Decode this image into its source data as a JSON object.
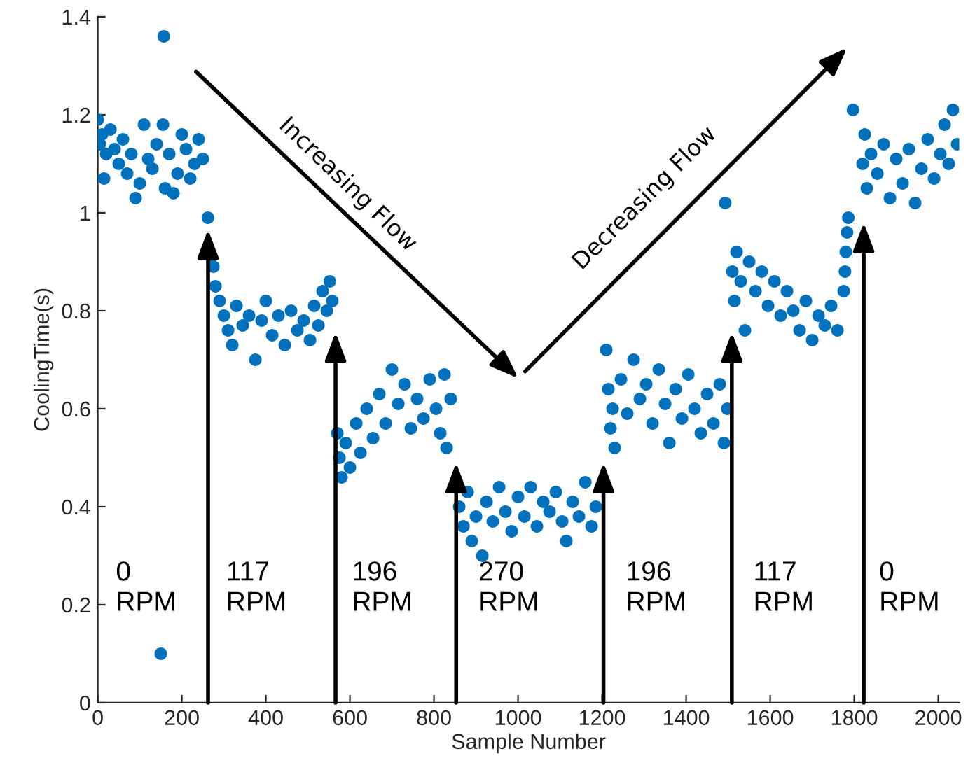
{
  "chart_data": {
    "type": "scatter",
    "xlabel": "Sample Number",
    "ylabel": "CoolingTime(s)",
    "xlim": [
      0,
      2050
    ],
    "ylim": [
      0,
      1.4
    ],
    "xticks": [
      0,
      200,
      400,
      600,
      800,
      1000,
      1200,
      1400,
      1600,
      1800,
      2000
    ],
    "yticks": [
      0,
      0.2,
      0.4,
      0.6,
      0.8,
      1,
      1.2,
      1.4
    ],
    "grid": false,
    "marker": "circle",
    "series": [
      {
        "color": "#0072bd",
        "x": [
          0,
          5,
          10,
          15,
          20,
          30,
          40,
          50,
          60,
          70,
          80,
          90,
          100,
          110,
          120,
          130,
          140,
          157,
          150,
          155,
          160,
          170,
          180,
          190,
          200,
          210,
          220,
          230,
          240,
          250,
          262,
          270,
          275,
          280,
          290,
          300,
          310,
          320,
          330,
          345,
          360,
          375,
          390,
          400,
          415,
          430,
          445,
          460,
          475,
          490,
          505,
          515,
          525,
          535,
          545,
          552,
          558,
          570,
          575,
          580,
          590,
          600,
          615,
          625,
          640,
          655,
          670,
          685,
          700,
          715,
          730,
          745,
          760,
          775,
          790,
          805,
          815,
          825,
          830,
          840,
          860,
          870,
          880,
          890,
          900,
          915,
          925,
          940,
          955,
          970,
          985,
          1000,
          1015,
          1030,
          1045,
          1060,
          1075,
          1090,
          1105,
          1115,
          1130,
          1145,
          1160,
          1175,
          1185,
          1210,
          1215,
          1220,
          1225,
          1230,
          1245,
          1260,
          1275,
          1290,
          1305,
          1320,
          1335,
          1350,
          1360,
          1375,
          1390,
          1405,
          1420,
          1435,
          1450,
          1465,
          1480,
          1490,
          1498,
          1493,
          1510,
          1515,
          1520,
          1530,
          1540,
          1550,
          1565,
          1580,
          1595,
          1610,
          1625,
          1640,
          1655,
          1670,
          1685,
          1700,
          1715,
          1730,
          1745,
          1760,
          1775,
          1778,
          1780,
          1783,
          1786,
          1797,
          1820,
          1825,
          1830,
          1840,
          1855,
          1870,
          1885,
          1900,
          1915,
          1930,
          1945,
          1960,
          1975,
          1990,
          2005,
          2015,
          2025,
          2035,
          2045
        ],
        "values": [
          1.19,
          1.14,
          1.16,
          1.07,
          1.12,
          1.17,
          1.13,
          1.1,
          1.15,
          1.08,
          1.12,
          1.03,
          1.06,
          1.18,
          1.11,
          1.09,
          1.14,
          1.36,
          0.1,
          1.18,
          1.05,
          1.12,
          1.04,
          1.08,
          1.16,
          1.13,
          1.07,
          1.1,
          1.15,
          1.11,
          0.99,
          0.91,
          0.89,
          0.85,
          0.82,
          0.79,
          0.76,
          0.73,
          0.81,
          0.77,
          0.79,
          0.7,
          0.78,
          0.82,
          0.75,
          0.79,
          0.73,
          0.8,
          0.76,
          0.78,
          0.74,
          0.81,
          0.77,
          0.84,
          0.8,
          0.86,
          0.82,
          0.55,
          0.5,
          0.46,
          0.53,
          0.48,
          0.57,
          0.51,
          0.6,
          0.54,
          0.63,
          0.57,
          0.68,
          0.61,
          0.65,
          0.56,
          0.62,
          0.58,
          0.66,
          0.6,
          0.55,
          0.67,
          0.52,
          0.62,
          0.4,
          0.36,
          0.43,
          0.33,
          0.38,
          0.3,
          0.41,
          0.37,
          0.44,
          0.39,
          0.35,
          0.42,
          0.38,
          0.44,
          0.36,
          0.41,
          0.39,
          0.43,
          0.37,
          0.33,
          0.41,
          0.38,
          0.45,
          0.36,
          0.4,
          0.72,
          0.64,
          0.56,
          0.6,
          0.52,
          0.66,
          0.59,
          0.7,
          0.62,
          0.65,
          0.57,
          0.68,
          0.61,
          0.53,
          0.64,
          0.58,
          0.67,
          0.6,
          0.55,
          0.63,
          0.57,
          0.65,
          0.53,
          0.6,
          1.02,
          0.88,
          0.82,
          0.92,
          0.86,
          0.76,
          0.9,
          0.84,
          0.88,
          0.81,
          0.86,
          0.79,
          0.84,
          0.8,
          0.76,
          0.82,
          0.74,
          0.79,
          0.77,
          0.81,
          0.76,
          0.84,
          0.88,
          0.92,
          0.96,
          0.99,
          1.21,
          1.1,
          1.16,
          1.05,
          1.12,
          1.08,
          1.14,
          1.03,
          1.11,
          1.06,
          1.13,
          1.02,
          1.09,
          1.15,
          1.07,
          1.12,
          1.18,
          1.1,
          1.21,
          1.14
        ]
      }
    ],
    "annotations": [
      "Increasing Flow",
      "Decreasing Flow",
      "0\nRPM",
      "117\nRPM",
      "196\nRPM",
      "270\nRPM",
      "196\nRPM",
      "117\nRPM",
      "0\nRPM"
    ]
  }
}
